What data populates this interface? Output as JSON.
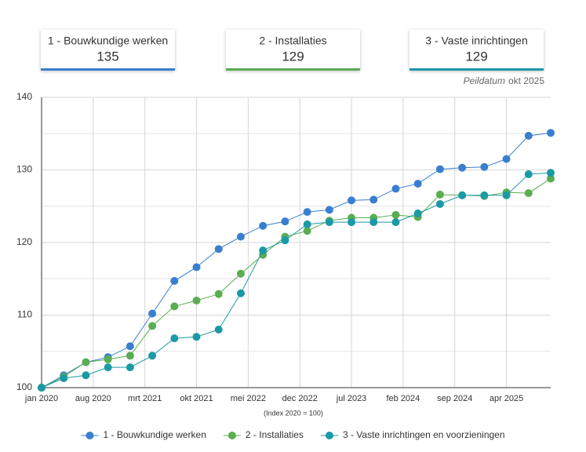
{
  "cards": [
    {
      "label": "1 - Bouwkundige werken",
      "value": "135",
      "color": "#3a7fcf"
    },
    {
      "label": "2 - Installaties",
      "value": "129",
      "color": "#5aad52"
    },
    {
      "label": "3 - Vaste inrichtingen",
      "value": "129",
      "color": "#1b99a5"
    }
  ],
  "reference_date": {
    "label": "Peildatum",
    "value": "okt 2025"
  },
  "chart_data": {
    "type": "line",
    "x_axis_note": "(Index 2020 = 100)",
    "x": [
      "2020-01",
      "2020-04",
      "2020-07",
      "2020-10",
      "2021-01",
      "2021-04",
      "2021-07",
      "2021-10",
      "2022-01",
      "2022-04",
      "2022-07",
      "2022-10",
      "2023-01",
      "2023-04",
      "2023-07",
      "2023-10",
      "2024-01",
      "2024-04",
      "2024-07",
      "2024-10",
      "2025-01",
      "2025-04",
      "2025-07",
      "2025-10"
    ],
    "xlim": [
      "2020-01",
      "2025-10"
    ],
    "xticks": [
      {
        "value": "2020-01",
        "label": "jan 2020"
      },
      {
        "value": "2020-08",
        "label": "aug 2020"
      },
      {
        "value": "2021-03",
        "label": "mrt 2021"
      },
      {
        "value": "2021-10",
        "label": "okt 2021"
      },
      {
        "value": "2022-05",
        "label": "mei 2022"
      },
      {
        "value": "2022-12",
        "label": "dec 2022"
      },
      {
        "value": "2023-07",
        "label": "jul 2023"
      },
      {
        "value": "2024-02",
        "label": "feb 2024"
      },
      {
        "value": "2024-09",
        "label": "sep 2024"
      },
      {
        "value": "2025-04",
        "label": "apr 2025"
      }
    ],
    "ylim": [
      100,
      140
    ],
    "yticks": [
      100,
      110,
      120,
      130,
      140
    ],
    "minor_yticks": [
      105,
      115,
      125,
      135
    ],
    "grid": true,
    "legend": "bottom",
    "series": [
      {
        "name": "1 - Bouwkundige werken",
        "color": "#3a7fcf",
        "values": [
          100,
          101.7,
          103.5,
          104.2,
          105.7,
          110.2,
          114.7,
          116.6,
          119.1,
          120.8,
          122.3,
          122.9,
          124.2,
          124.5,
          125.8,
          125.9,
          127.4,
          128.1,
          130.1,
          130.3,
          130.4,
          131.5,
          134.7,
          135.1
        ]
      },
      {
        "name": "2 - Installaties",
        "color": "#5aad52",
        "values": [
          100,
          101.5,
          103.5,
          103.9,
          104.4,
          108.5,
          111.2,
          112.0,
          112.9,
          115.7,
          118.3,
          120.8,
          121.6,
          123.0,
          123.4,
          123.4,
          123.8,
          123.5,
          126.6,
          126.5,
          126.4,
          126.9,
          126.8,
          128.8
        ]
      },
      {
        "name": "3 - Vaste inrichtingen en voorzieningen",
        "color": "#1b99a5",
        "values": [
          100,
          101.3,
          101.7,
          102.8,
          102.8,
          104.4,
          106.8,
          107.0,
          108.0,
          113.0,
          118.9,
          120.3,
          122.5,
          122.8,
          122.8,
          122.8,
          122.8,
          124.0,
          125.3,
          126.5,
          126.5,
          126.5,
          129.4,
          129.6
        ]
      }
    ]
  }
}
